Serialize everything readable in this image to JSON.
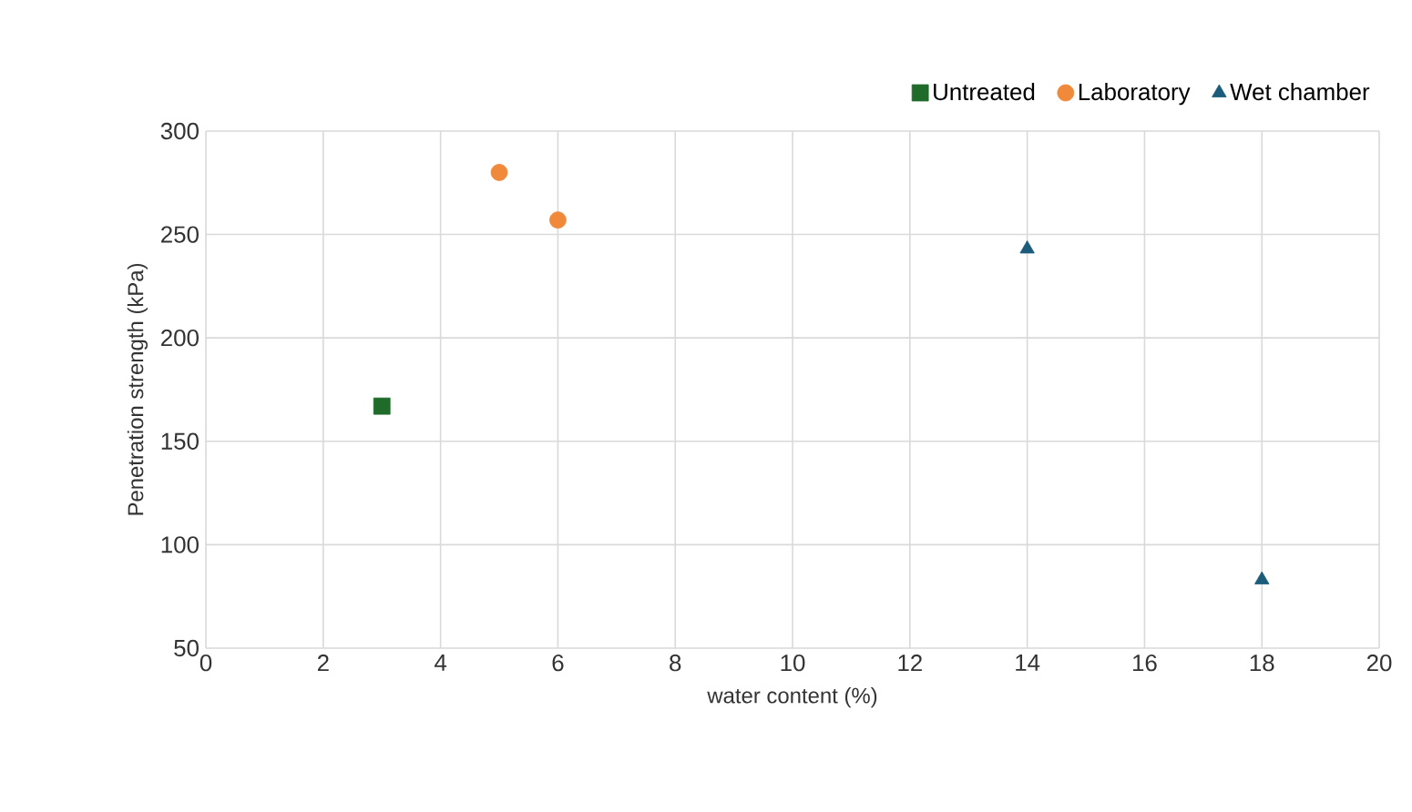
{
  "chart_data": {
    "type": "scatter",
    "xlabel": "water content (%)",
    "ylabel": "Penetration strength (kPa)",
    "xlim": [
      0,
      20
    ],
    "xticks": [
      0,
      2,
      4,
      6,
      8,
      10,
      12,
      14,
      16,
      18,
      20
    ],
    "ylim": [
      50,
      300
    ],
    "yticks": [
      50,
      100,
      150,
      200,
      250,
      300
    ],
    "grid": true,
    "legend": "top right",
    "series": [
      {
        "name": "Untreated",
        "color": "#1e6b2a",
        "marker": "square",
        "x": [
          3
        ],
        "values": [
          167
        ]
      },
      {
        "name": "Laboratory",
        "color": "#f0893a",
        "marker": "circle",
        "x": [
          5,
          6
        ],
        "values": [
          280,
          257
        ]
      },
      {
        "name": "Wet chamber",
        "color": "#1b5c7a",
        "marker": "triangle",
        "x": [
          14,
          18
        ],
        "values": [
          243,
          83
        ]
      }
    ]
  }
}
